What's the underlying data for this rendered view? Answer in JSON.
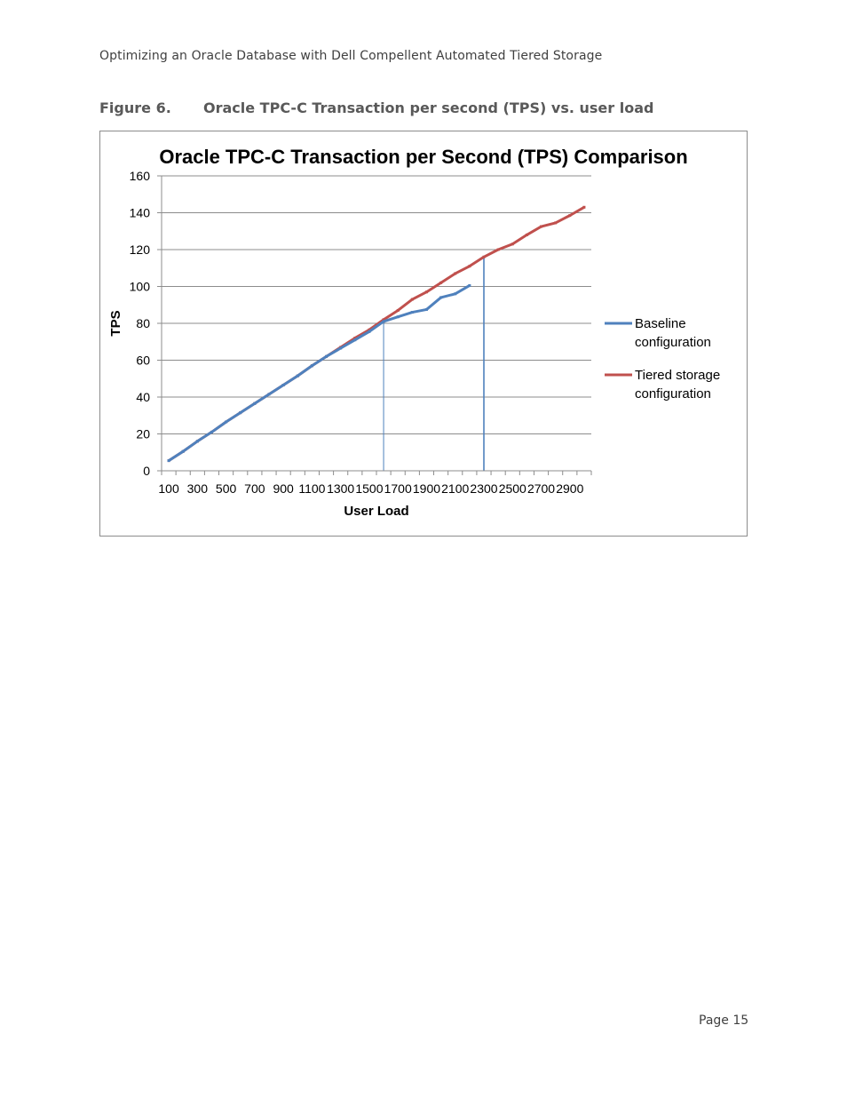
{
  "page": {
    "running_header": "Optimizing an Oracle Database with Dell Compellent Automated Tiered Storage",
    "figure_number": "Figure 6.",
    "figure_title": "Oracle TPC-C Transaction per second (TPS) vs. user load",
    "page_number": "Page 15"
  },
  "chart_data": {
    "type": "line",
    "title": "Oracle TPC-C Transaction per Second (TPS) Comparison",
    "xlabel": "User Load",
    "ylabel": "TPS",
    "x": [
      100,
      200,
      300,
      400,
      500,
      600,
      700,
      800,
      900,
      1000,
      1100,
      1200,
      1300,
      1400,
      1500,
      1600,
      1700,
      1800,
      1900,
      2000,
      2100,
      2200,
      2300,
      2400,
      2500,
      2600,
      2700,
      2800,
      2900,
      3000
    ],
    "x_tick_labels": [
      "100",
      "300",
      "500",
      "700",
      "900",
      "1100",
      "1300",
      "1500",
      "1700",
      "1900",
      "2100",
      "2300",
      "2500",
      "2700",
      "2900"
    ],
    "ylim": [
      0,
      160
    ],
    "y_ticks": [
      0,
      20,
      40,
      60,
      80,
      100,
      120,
      140,
      160
    ],
    "grid": "horizontal",
    "legend_position": "right",
    "series": [
      {
        "name": "Baseline configuration",
        "color": "#4f81bd",
        "values": [
          5.5,
          10.5,
          16,
          21,
          26.5,
          31.5,
          36.5,
          41.5,
          46.5,
          51.5,
          57,
          62,
          66.5,
          71,
          75.5,
          81,
          83.5,
          86,
          87.5,
          94,
          96,
          100.5,
          null,
          null,
          null,
          null,
          null,
          null,
          null,
          null
        ]
      },
      {
        "name": "Tiered storage configuration",
        "color": "#c0504d",
        "values": [
          5.5,
          10.5,
          16,
          21,
          26.5,
          31.5,
          36.5,
          41.5,
          46.5,
          51.5,
          57,
          62,
          67,
          72,
          76.5,
          82,
          87,
          93,
          97,
          102,
          107,
          111,
          116,
          120,
          123,
          128,
          132.5,
          134.5,
          138.5,
          143
        ]
      }
    ],
    "reference_lines": [
      {
        "x": 1600,
        "y": 81,
        "color": "#4f81bd"
      },
      {
        "x": 2300,
        "y": 116,
        "color": "#4f81bd"
      }
    ]
  }
}
